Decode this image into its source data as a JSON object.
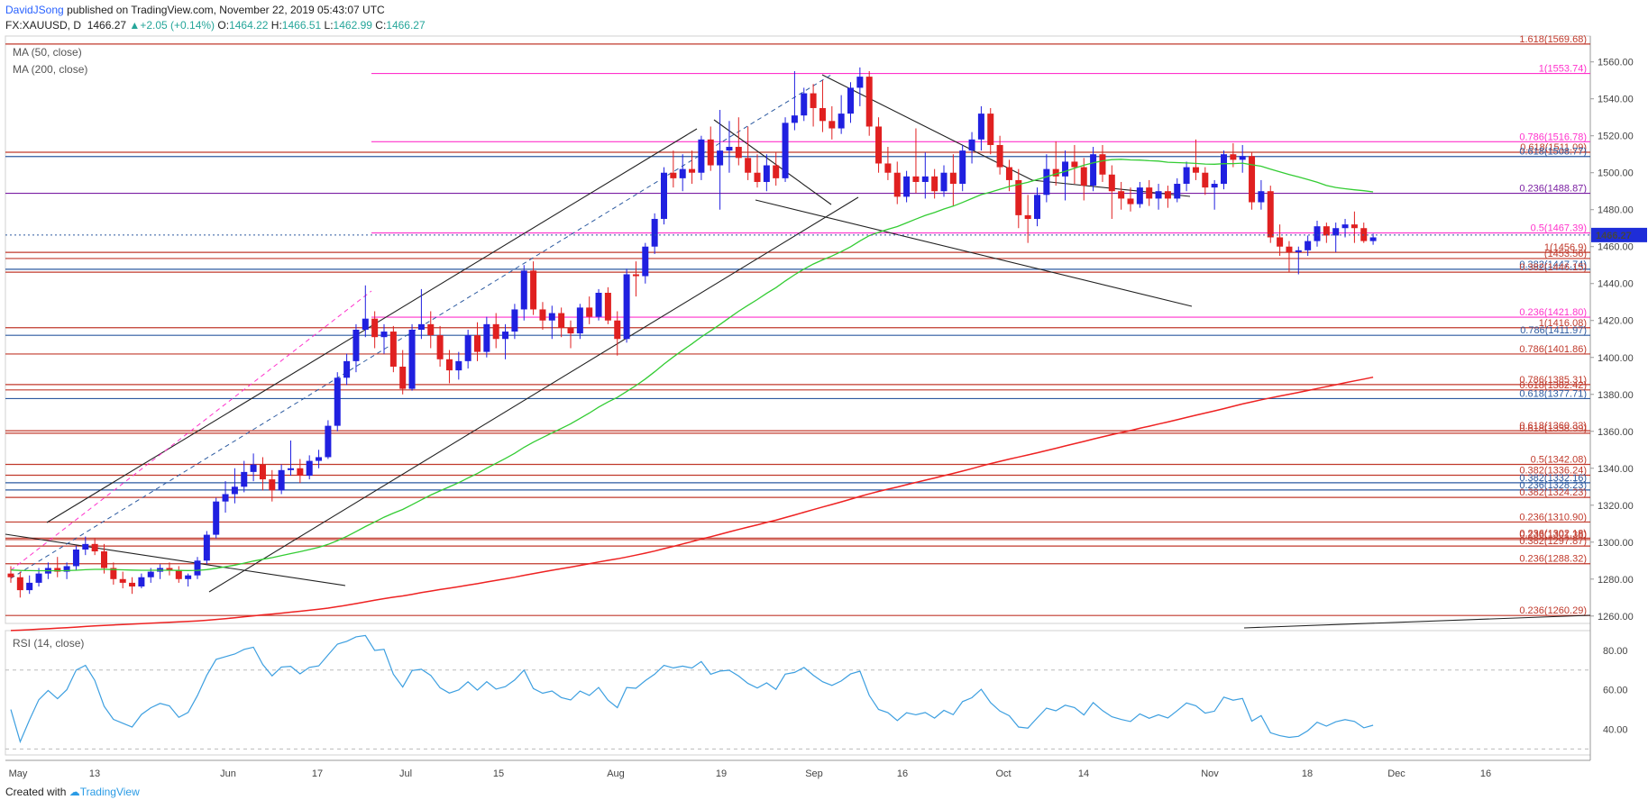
{
  "header": {
    "author": "DavidJSong",
    "published": "published on TradingView.com, November 22, 2019 05:43:07 UTC",
    "symbol": "FX:XAUUSD, D",
    "last": "1466.27",
    "change": "+2.05 (+0.14%)",
    "o_label": "O:",
    "o": "1464.22",
    "h_label": "H:",
    "h": "1466.51",
    "l_label": "L:",
    "l": "1462.99",
    "c_label": "C:",
    "c": "1466.27"
  },
  "footer": {
    "created_with": "Created with",
    "brand": "TradingView"
  },
  "colors": {
    "up": "#2020e0",
    "down": "#e02020",
    "ma50": "#33cc33",
    "ma200": "#ee2222",
    "rsi": "#3d9fe0",
    "fib_red": "#c0392b",
    "fib_blue": "#2c5aa0",
    "fib_magenta": "#ff33cc",
    "fib_purple": "#7b1fa2"
  },
  "chart_data": [
    {
      "type": "candlestick",
      "indicators": [
        "MA (50, close)",
        "MA (200, close)"
      ],
      "ylim": [
        1256,
        1574
      ],
      "y_ticks": [
        1260,
        1280,
        1300,
        1320,
        1340,
        1360,
        1380,
        1400,
        1420,
        1440,
        1460,
        1480,
        1500,
        1520,
        1540,
        1560
      ],
      "x_labels": [
        "May",
        "13",
        "Jun",
        "17",
        "Jul",
        "15",
        "Aug",
        "19",
        "Sep",
        "16",
        "Oct",
        "14",
        "Nov",
        "18",
        "Dec",
        "16"
      ],
      "last_price": "1466.27",
      "fib_levels": [
        {
          "label": "1.618(1569.68)",
          "value": 1569.68,
          "color": "fib_red"
        },
        {
          "label": "1(1553.74)",
          "value": 1553.74,
          "color": "fib_magenta"
        },
        {
          "label": "0.786(1516.78)",
          "value": 1516.78,
          "color": "fib_magenta"
        },
        {
          "label": "0.618(1511.09)",
          "value": 1511.09,
          "color": "fib_red"
        },
        {
          "label": "0.618(1508.77)",
          "value": 1508.77,
          "color": "fib_blue"
        },
        {
          "label": "0.236(1488.87)",
          "value": 1488.87,
          "color": "fib_purple"
        },
        {
          "label": "0.5(1467.39)",
          "value": 1467.39,
          "color": "fib_magenta"
        },
        {
          "label": "1(1456.9)",
          "value": 1456.9,
          "color": "fib_red"
        },
        {
          "label": "(1453.56)",
          "value": 1453.56,
          "color": "fib_red"
        },
        {
          "label": "0.382(1447.74)",
          "value": 1447.74,
          "color": "fib_blue"
        },
        {
          "label": "0.382(1446.15)",
          "value": 1446.15,
          "color": "fib_red"
        },
        {
          "label": "0.236(1421.80)",
          "value": 1421.8,
          "color": "fib_magenta"
        },
        {
          "label": "1(1416.08)",
          "value": 1416.08,
          "color": "fib_red"
        },
        {
          "label": "0.786(1411.97)",
          "value": 1411.97,
          "color": "fib_blue"
        },
        {
          "label": "0.786(1401.86)",
          "value": 1401.86,
          "color": "fib_red"
        },
        {
          "label": "0.786(1385.31)",
          "value": 1385.31,
          "color": "fib_red"
        },
        {
          "label": "0.618(1382.42)",
          "value": 1382.42,
          "color": "fib_red"
        },
        {
          "label": "0.618(1377.71)",
          "value": 1377.71,
          "color": "fib_blue"
        },
        {
          "label": "0.618(1360.33)",
          "value": 1360.33,
          "color": "fib_red"
        },
        {
          "label": "0.618(1358.99)",
          "value": 1358.99,
          "color": "fib_red"
        },
        {
          "label": "0.5(1342.08)",
          "value": 1342.08,
          "color": "fib_red"
        },
        {
          "label": "0.382(1336.24)",
          "value": 1336.24,
          "color": "fib_red"
        },
        {
          "label": "0.382(1332.16)",
          "value": 1332.16,
          "color": "fib_blue"
        },
        {
          "label": "0.236(1328.23)",
          "value": 1328.23,
          "color": "fib_blue"
        },
        {
          "label": "0.382(1324.23)",
          "value": 1324.23,
          "color": "fib_red"
        },
        {
          "label": "0.236(1310.90)",
          "value": 1310.9,
          "color": "fib_red"
        },
        {
          "label": "0.236(1302.18)",
          "value": 1302.18,
          "color": "fib_red"
        },
        {
          "label": "0.236(1301.38)",
          "value": 1301.38,
          "color": "fib_red"
        },
        {
          "label": "0.382(1297.87)",
          "value": 1297.87,
          "color": "fib_red"
        },
        {
          "label": "0.236(1288.32)",
          "value": 1288.32,
          "color": "fib_red"
        },
        {
          "label": "0.236(1260.29)",
          "value": 1260.29,
          "color": "fib_red"
        }
      ],
      "candles": [
        [
          1283,
          1287,
          1278,
          1281
        ],
        [
          1281,
          1284,
          1270,
          1274
        ],
        [
          1274,
          1282,
          1272,
          1278
        ],
        [
          1278,
          1286,
          1276,
          1283
        ],
        [
          1283,
          1289,
          1280,
          1286
        ],
        [
          1286,
          1292,
          1281,
          1284
        ],
        [
          1284,
          1289,
          1280,
          1287
        ],
        [
          1287,
          1298,
          1285,
          1296
        ],
        [
          1296,
          1303,
          1293,
          1299
        ],
        [
          1299,
          1302,
          1293,
          1295
        ],
        [
          1295,
          1299,
          1283,
          1286
        ],
        [
          1286,
          1289,
          1277,
          1280
        ],
        [
          1280,
          1284,
          1275,
          1278
        ],
        [
          1278,
          1281,
          1272,
          1276
        ],
        [
          1276,
          1283,
          1275,
          1281
        ],
        [
          1281,
          1286,
          1278,
          1284
        ],
        [
          1284,
          1288,
          1280,
          1286
        ],
        [
          1286,
          1289,
          1282,
          1285
        ],
        [
          1285,
          1287,
          1278,
          1280
        ],
        [
          1280,
          1283,
          1276,
          1282
        ],
        [
          1282,
          1292,
          1280,
          1290
        ],
        [
          1290,
          1306,
          1288,
          1304
        ],
        [
          1304,
          1324,
          1302,
          1322
        ],
        [
          1322,
          1333,
          1316,
          1326
        ],
        [
          1326,
          1340,
          1321,
          1330
        ],
        [
          1330,
          1344,
          1327,
          1338
        ],
        [
          1338,
          1348,
          1333,
          1342
        ],
        [
          1342,
          1346,
          1328,
          1334
        ],
        [
          1334,
          1339,
          1322,
          1328
        ],
        [
          1328,
          1342,
          1326,
          1339
        ],
        [
          1339,
          1355,
          1336,
          1340
        ],
        [
          1340,
          1345,
          1332,
          1336
        ],
        [
          1336,
          1347,
          1334,
          1344
        ],
        [
          1344,
          1350,
          1340,
          1346
        ],
        [
          1346,
          1366,
          1345,
          1363
        ],
        [
          1363,
          1392,
          1360,
          1389
        ],
        [
          1389,
          1402,
          1385,
          1398
        ],
        [
          1398,
          1418,
          1392,
          1415
        ],
        [
          1415,
          1439,
          1411,
          1421
        ],
        [
          1421,
          1425,
          1405,
          1411
        ],
        [
          1411,
          1418,
          1402,
          1414
        ],
        [
          1414,
          1417,
          1392,
          1395
        ],
        [
          1395,
          1404,
          1380,
          1383
        ],
        [
          1383,
          1418,
          1382,
          1415
        ],
        [
          1415,
          1437,
          1410,
          1418
        ],
        [
          1418,
          1425,
          1405,
          1412
        ],
        [
          1412,
          1417,
          1395,
          1399
        ],
        [
          1399,
          1404,
          1386,
          1393
        ],
        [
          1393,
          1403,
          1388,
          1398
        ],
        [
          1398,
          1415,
          1394,
          1412
        ],
        [
          1412,
          1419,
          1398,
          1403
        ],
        [
          1403,
          1422,
          1400,
          1418
        ],
        [
          1418,
          1424,
          1405,
          1410
        ],
        [
          1410,
          1418,
          1399,
          1414
        ],
        [
          1414,
          1429,
          1410,
          1426
        ],
        [
          1426,
          1450,
          1420,
          1447
        ],
        [
          1447,
          1452,
          1423,
          1426
        ],
        [
          1426,
          1430,
          1415,
          1420
        ],
        [
          1420,
          1428,
          1410,
          1424
        ],
        [
          1424,
          1427,
          1411,
          1416
        ],
        [
          1416,
          1420,
          1405,
          1413
        ],
        [
          1413,
          1429,
          1410,
          1427
        ],
        [
          1427,
          1433,
          1418,
          1422
        ],
        [
          1422,
          1437,
          1420,
          1435
        ],
        [
          1435,
          1438,
          1418,
          1420
        ],
        [
          1420,
          1425,
          1401,
          1410
        ],
        [
          1410,
          1448,
          1408,
          1445
        ],
        [
          1445,
          1452,
          1433,
          1444
        ],
        [
          1444,
          1462,
          1440,
          1460
        ],
        [
          1460,
          1478,
          1456,
          1475
        ],
        [
          1475,
          1503,
          1472,
          1500
        ],
        [
          1500,
          1512,
          1492,
          1497
        ],
        [
          1497,
          1510,
          1490,
          1502
        ],
        [
          1502,
          1512,
          1494,
          1500
        ],
        [
          1500,
          1520,
          1496,
          1518
        ],
        [
          1518,
          1525,
          1501,
          1504
        ],
        [
          1504,
          1534,
          1480,
          1512
        ],
        [
          1512,
          1528,
          1500,
          1514
        ],
        [
          1514,
          1530,
          1504,
          1508
        ],
        [
          1508,
          1525,
          1496,
          1500
        ],
        [
          1500,
          1510,
          1492,
          1495
        ],
        [
          1495,
          1510,
          1490,
          1504
        ],
        [
          1504,
          1511,
          1493,
          1497
        ],
        [
          1497,
          1530,
          1495,
          1527
        ],
        [
          1527,
          1555,
          1523,
          1531
        ],
        [
          1531,
          1546,
          1528,
          1543
        ],
        [
          1543,
          1548,
          1525,
          1535
        ],
        [
          1535,
          1550,
          1522,
          1528
        ],
        [
          1528,
          1536,
          1518,
          1524
        ],
        [
          1524,
          1542,
          1521,
          1532
        ],
        [
          1532,
          1549,
          1527,
          1546
        ],
        [
          1546,
          1557,
          1536,
          1552
        ],
        [
          1552,
          1555,
          1520,
          1525
        ],
        [
          1525,
          1530,
          1500,
          1505
        ],
        [
          1505,
          1514,
          1496,
          1500
        ],
        [
          1500,
          1506,
          1483,
          1487
        ],
        [
          1487,
          1501,
          1484,
          1498
        ],
        [
          1498,
          1524,
          1489,
          1495
        ],
        [
          1495,
          1511,
          1486,
          1498
        ],
        [
          1498,
          1502,
          1486,
          1490
        ],
        [
          1490,
          1504,
          1487,
          1500
        ],
        [
          1500,
          1510,
          1482,
          1494
        ],
        [
          1494,
          1515,
          1490,
          1512
        ],
        [
          1512,
          1522,
          1505,
          1518
        ],
        [
          1518,
          1536,
          1512,
          1532
        ],
        [
          1532,
          1535,
          1510,
          1515
        ],
        [
          1515,
          1520,
          1499,
          1503
        ],
        [
          1503,
          1507,
          1490,
          1496
        ],
        [
          1496,
          1502,
          1470,
          1477
        ],
        [
          1477,
          1488,
          1462,
          1475
        ],
        [
          1475,
          1492,
          1471,
          1488
        ],
        [
          1488,
          1510,
          1484,
          1502
        ],
        [
          1502,
          1517,
          1493,
          1498
        ],
        [
          1498,
          1512,
          1485,
          1506
        ],
        [
          1506,
          1515,
          1494,
          1503
        ],
        [
          1503,
          1508,
          1485,
          1493
        ],
        [
          1493,
          1514,
          1490,
          1510
        ],
        [
          1510,
          1515,
          1495,
          1499
        ],
        [
          1499,
          1504,
          1475,
          1490
        ],
        [
          1490,
          1495,
          1480,
          1486
        ],
        [
          1486,
          1492,
          1479,
          1483
        ],
        [
          1483,
          1495,
          1481,
          1492
        ],
        [
          1492,
          1496,
          1482,
          1486
        ],
        [
          1486,
          1494,
          1480,
          1490
        ],
        [
          1490,
          1493,
          1481,
          1486
        ],
        [
          1486,
          1497,
          1484,
          1494
        ],
        [
          1494,
          1506,
          1490,
          1503
        ],
        [
          1503,
          1518,
          1496,
          1500
        ],
        [
          1500,
          1503,
          1488,
          1492
        ],
        [
          1492,
          1496,
          1480,
          1494
        ],
        [
          1494,
          1512,
          1491,
          1510
        ],
        [
          1510,
          1516,
          1503,
          1507
        ],
        [
          1507,
          1515,
          1500,
          1509
        ],
        [
          1509,
          1511,
          1480,
          1484
        ],
        [
          1484,
          1496,
          1480,
          1490
        ],
        [
          1490,
          1493,
          1462,
          1465
        ],
        [
          1465,
          1472,
          1455,
          1460
        ],
        [
          1460,
          1463,
          1446,
          1457
        ],
        [
          1457,
          1460,
          1445,
          1458
        ],
        [
          1458,
          1466,
          1455,
          1463
        ],
        [
          1463,
          1474,
          1460,
          1471
        ],
        [
          1471,
          1473,
          1462,
          1466
        ],
        [
          1466,
          1473,
          1457,
          1470
        ],
        [
          1470,
          1475,
          1465,
          1472
        ],
        [
          1472,
          1479,
          1462,
          1470
        ],
        [
          1470,
          1473,
          1462,
          1463
        ],
        [
          1463,
          1467,
          1461,
          1465
        ]
      ]
    },
    {
      "type": "line",
      "title": "RSI (14, close)",
      "ylim": [
        27,
        90
      ],
      "y_ticks": [
        40,
        60,
        80
      ]
    }
  ]
}
